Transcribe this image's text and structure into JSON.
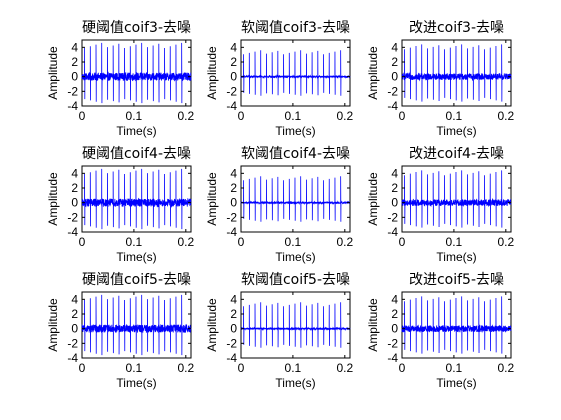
{
  "chart_data": [
    {
      "type": "line",
      "title": "硬阈值coif3-去噪",
      "xlabel": "Time(s)",
      "ylabel": "Amplitude",
      "xlim": [
        0,
        0.21
      ],
      "ylim": [
        -4,
        5
      ],
      "xticks": [
        0,
        0.1,
        0.2
      ],
      "xtick_labels": [
        "0",
        "0.1",
        "0.2"
      ],
      "yticks": [
        -4,
        -2,
        0,
        2,
        4
      ],
      "ytick_labels": [
        "-4",
        "-2",
        "0",
        "2",
        "4"
      ],
      "grid": false,
      "line_color": "#0000ff",
      "spike_times": [
        0.005,
        0.016,
        0.027,
        0.038,
        0.049,
        0.06,
        0.071,
        0.082,
        0.093,
        0.104,
        0.115,
        0.126,
        0.137,
        0.148,
        0.159,
        0.17,
        0.181,
        0.192
      ],
      "spike_max": 4.6,
      "spike_min": -3.6,
      "noise_amplitude": 0.55
    },
    {
      "type": "line",
      "title": "软阈值coif3-去噪",
      "xlabel": "Time(s)",
      "ylabel": "Amplitude",
      "xlim": [
        0,
        0.21
      ],
      "ylim": [
        -4,
        5
      ],
      "xticks": [
        0,
        0.1,
        0.2
      ],
      "xtick_labels": [
        "0",
        "0.1",
        "0.2"
      ],
      "yticks": [
        -4,
        -2,
        0,
        2,
        4
      ],
      "ytick_labels": [
        "-4",
        "-2",
        "0",
        "2",
        "4"
      ],
      "grid": false,
      "line_color": "#0000ff",
      "spike_times": [
        0.005,
        0.016,
        0.027,
        0.038,
        0.049,
        0.06,
        0.071,
        0.082,
        0.093,
        0.104,
        0.115,
        0.126,
        0.137,
        0.148,
        0.159,
        0.17,
        0.181,
        0.192
      ],
      "spike_max": 3.6,
      "spike_min": -2.6,
      "noise_amplitude": 0.12
    },
    {
      "type": "line",
      "title": "改进coif3-去噪",
      "xlabel": "Time(s)",
      "ylabel": "Amplitude",
      "xlim": [
        0,
        0.21
      ],
      "ylim": [
        -4,
        5
      ],
      "xticks": [
        0,
        0.1,
        0.2
      ],
      "xtick_labels": [
        "0",
        "0.1",
        "0.2"
      ],
      "yticks": [
        -4,
        -2,
        0,
        2,
        4
      ],
      "ytick_labels": [
        "-4",
        "-2",
        "0",
        "2",
        "4"
      ],
      "grid": false,
      "line_color": "#0000ff",
      "spike_times": [
        0.005,
        0.016,
        0.027,
        0.038,
        0.049,
        0.06,
        0.071,
        0.082,
        0.093,
        0.104,
        0.115,
        0.126,
        0.137,
        0.148,
        0.159,
        0.17,
        0.181,
        0.192
      ],
      "spike_max": 4.4,
      "spike_min": -3.4,
      "noise_amplitude": 0.45
    },
    {
      "type": "line",
      "title": "硬阈值coif4-去噪",
      "xlabel": "Time(s)",
      "ylabel": "Amplitude",
      "xlim": [
        0,
        0.21
      ],
      "ylim": [
        -4,
        5
      ],
      "xticks": [
        0,
        0.1,
        0.2
      ],
      "xtick_labels": [
        "0",
        "0.1",
        "0.2"
      ],
      "yticks": [
        -4,
        -2,
        0,
        2,
        4
      ],
      "ytick_labels": [
        "-4",
        "-2",
        "0",
        "2",
        "4"
      ],
      "grid": false,
      "line_color": "#0000ff",
      "spike_times": [
        0.005,
        0.016,
        0.027,
        0.038,
        0.049,
        0.06,
        0.071,
        0.082,
        0.093,
        0.104,
        0.115,
        0.126,
        0.137,
        0.148,
        0.159,
        0.17,
        0.181,
        0.192
      ],
      "spike_max": 4.6,
      "spike_min": -3.6,
      "noise_amplitude": 0.55
    },
    {
      "type": "line",
      "title": "软阈值coif4-去噪",
      "xlabel": "Time(s)",
      "ylabel": "Amplitude",
      "xlim": [
        0,
        0.21
      ],
      "ylim": [
        -4,
        5
      ],
      "xticks": [
        0,
        0.1,
        0.2
      ],
      "xtick_labels": [
        "0",
        "0.1",
        "0.2"
      ],
      "yticks": [
        -4,
        -2,
        0,
        2,
        4
      ],
      "ytick_labels": [
        "-4",
        "-2",
        "0",
        "2",
        "4"
      ],
      "grid": false,
      "line_color": "#0000ff",
      "spike_times": [
        0.005,
        0.016,
        0.027,
        0.038,
        0.049,
        0.06,
        0.071,
        0.082,
        0.093,
        0.104,
        0.115,
        0.126,
        0.137,
        0.148,
        0.159,
        0.17,
        0.181,
        0.192
      ],
      "spike_max": 3.6,
      "spike_min": -2.6,
      "noise_amplitude": 0.12
    },
    {
      "type": "line",
      "title": "改进coif4-去噪",
      "xlabel": "Time(s)",
      "ylabel": "Amplitude",
      "xlim": [
        0,
        0.21
      ],
      "ylim": [
        -4,
        5
      ],
      "xticks": [
        0,
        0.1,
        0.2
      ],
      "xtick_labels": [
        "0",
        "0.1",
        "0.2"
      ],
      "yticks": [
        -4,
        -2,
        0,
        2,
        4
      ],
      "ytick_labels": [
        "-4",
        "-2",
        "0",
        "2",
        "4"
      ],
      "grid": false,
      "line_color": "#0000ff",
      "spike_times": [
        0.005,
        0.016,
        0.027,
        0.038,
        0.049,
        0.06,
        0.071,
        0.082,
        0.093,
        0.104,
        0.115,
        0.126,
        0.137,
        0.148,
        0.159,
        0.17,
        0.181,
        0.192
      ],
      "spike_max": 4.4,
      "spike_min": -3.4,
      "noise_amplitude": 0.45
    },
    {
      "type": "line",
      "title": "硬阈值coif5-去噪",
      "xlabel": "Time(s)",
      "ylabel": "Amplitude",
      "xlim": [
        0,
        0.21
      ],
      "ylim": [
        -4,
        5
      ],
      "xticks": [
        0,
        0.1,
        0.2
      ],
      "xtick_labels": [
        "0",
        "0.1",
        "0.2"
      ],
      "yticks": [
        -4,
        -2,
        0,
        2,
        4
      ],
      "ytick_labels": [
        "-4",
        "-2",
        "0",
        "2",
        "4"
      ],
      "grid": false,
      "line_color": "#0000ff",
      "spike_times": [
        0.005,
        0.016,
        0.027,
        0.038,
        0.049,
        0.06,
        0.071,
        0.082,
        0.093,
        0.104,
        0.115,
        0.126,
        0.137,
        0.148,
        0.159,
        0.17,
        0.181,
        0.192
      ],
      "spike_max": 4.6,
      "spike_min": -3.6,
      "noise_amplitude": 0.55
    },
    {
      "type": "line",
      "title": "软阈值coif5-去噪",
      "xlabel": "Time(s)",
      "ylabel": "Amplitude",
      "xlim": [
        0,
        0.21
      ],
      "ylim": [
        -4,
        5
      ],
      "xticks": [
        0,
        0.1,
        0.2
      ],
      "xtick_labels": [
        "0",
        "0.1",
        "0.2"
      ],
      "yticks": [
        -4,
        -2,
        0,
        2,
        4
      ],
      "ytick_labels": [
        "-4",
        "-2",
        "0",
        "2",
        "4"
      ],
      "grid": false,
      "line_color": "#0000ff",
      "spike_times": [
        0.005,
        0.016,
        0.027,
        0.038,
        0.049,
        0.06,
        0.071,
        0.082,
        0.093,
        0.104,
        0.115,
        0.126,
        0.137,
        0.148,
        0.159,
        0.17,
        0.181,
        0.192
      ],
      "spike_max": 3.6,
      "spike_min": -2.6,
      "noise_amplitude": 0.12
    },
    {
      "type": "line",
      "title": "改进coif5-去噪",
      "xlabel": "Time(s)",
      "ylabel": "Amplitude",
      "xlim": [
        0,
        0.21
      ],
      "ylim": [
        -4,
        5
      ],
      "xticks": [
        0,
        0.1,
        0.2
      ],
      "xtick_labels": [
        "0",
        "0.1",
        "0.2"
      ],
      "yticks": [
        -4,
        -2,
        0,
        2,
        4
      ],
      "ytick_labels": [
        "-4",
        "-2",
        "0",
        "2",
        "4"
      ],
      "grid": false,
      "line_color": "#0000ff",
      "spike_times": [
        0.005,
        0.016,
        0.027,
        0.038,
        0.049,
        0.06,
        0.071,
        0.082,
        0.093,
        0.104,
        0.115,
        0.126,
        0.137,
        0.148,
        0.159,
        0.17,
        0.181,
        0.192
      ],
      "spike_max": 4.4,
      "spike_min": -3.4,
      "noise_amplitude": 0.45
    }
  ]
}
